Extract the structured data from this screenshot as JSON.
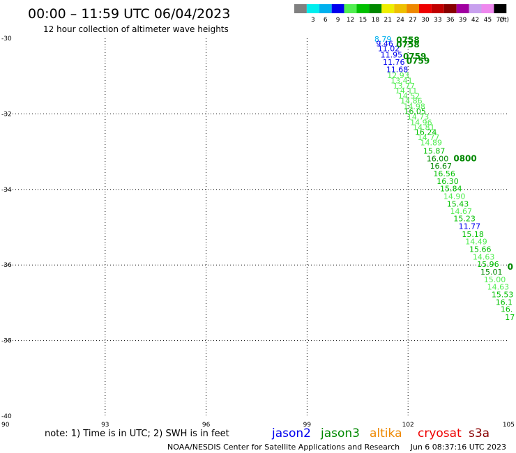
{
  "header": {
    "title": "00:00 – 11:59 UTC 06/04/2023",
    "subtitle": "12 hour collection of altimeter wave heights"
  },
  "color_scale": {
    "unit": "(ft)",
    "bins": [
      {
        "label": "",
        "color": "#808080"
      },
      {
        "label": "3",
        "color": "#00eeee"
      },
      {
        "label": "6",
        "color": "#00b0ee"
      },
      {
        "label": "9",
        "color": "#0000ee"
      },
      {
        "label": "12",
        "color": "#50ee50"
      },
      {
        "label": "15",
        "color": "#00c000"
      },
      {
        "label": "18",
        "color": "#008800"
      },
      {
        "label": "21",
        "color": "#eeee00"
      },
      {
        "label": "24",
        "color": "#eec000"
      },
      {
        "label": "27",
        "color": "#ee8800"
      },
      {
        "label": "30",
        "color": "#ee0000"
      },
      {
        "label": "33",
        "color": "#c00000"
      },
      {
        "label": "36",
        "color": "#880000"
      },
      {
        "label": "39",
        "color": "#a000a0"
      },
      {
        "label": "42",
        "color": "#c8a0ee"
      },
      {
        "label": "45",
        "color": "#ee88ee"
      },
      {
        "label": "70",
        "color": "#000000"
      }
    ]
  },
  "map": {
    "lon_range": [
      90,
      105
    ],
    "lat_range": [
      -40,
      -30
    ],
    "lon_ticks": [
      {
        "value": 90,
        "label": "90"
      },
      {
        "value": 93,
        "label": "93"
      },
      {
        "value": 96,
        "label": "96"
      },
      {
        "value": 99,
        "label": "99"
      },
      {
        "value": 102,
        "label": "102"
      },
      {
        "value": 105,
        "label": "105"
      }
    ],
    "lat_ticks": [
      {
        "value": -30,
        "label": "-30"
      },
      {
        "value": -32,
        "label": "-32"
      },
      {
        "value": -34,
        "label": "-34"
      },
      {
        "value": -36,
        "label": "-36"
      },
      {
        "value": -38,
        "label": "-38"
      },
      {
        "value": -40,
        "label": "-40"
      }
    ],
    "grid": "dotted",
    "observations": [
      {
        "lon": 101.0,
        "lat": -30.02,
        "text": "8.79",
        "color": "#00b0ee"
      },
      {
        "lon": 101.05,
        "lat": -30.14,
        "text": "9.46",
        "color": "#0000ee"
      },
      {
        "lon": 101.1,
        "lat": -30.27,
        "text": "11.02",
        "color": "#0000ee"
      },
      {
        "lon": 101.18,
        "lat": -30.43,
        "text": "11.95",
        "color": "#0000ee"
      },
      {
        "lon": 101.25,
        "lat": -30.63,
        "text": "11.76",
        "color": "#0000ee"
      },
      {
        "lon": 101.35,
        "lat": -30.82,
        "text": "11.68",
        "color": "#0000ee"
      },
      {
        "lon": 101.38,
        "lat": -30.98,
        "text": "12.93",
        "color": "#50ee50"
      },
      {
        "lon": 101.48,
        "lat": -31.12,
        "text": "13.41",
        "color": "#50ee50"
      },
      {
        "lon": 101.55,
        "lat": -31.25,
        "text": "13.77",
        "color": "#50ee50"
      },
      {
        "lon": 101.62,
        "lat": -31.38,
        "text": "14.11",
        "color": "#50ee50"
      },
      {
        "lon": 101.7,
        "lat": -31.52,
        "text": "14.52",
        "color": "#50ee50"
      },
      {
        "lon": 101.77,
        "lat": -31.65,
        "text": "14.86",
        "color": "#50ee50"
      },
      {
        "lon": 101.86,
        "lat": -31.8,
        "text": "14.98",
        "color": "#50ee50"
      },
      {
        "lon": 101.88,
        "lat": -31.93,
        "text": "16.05",
        "color": "#00c000"
      },
      {
        "lon": 101.97,
        "lat": -32.08,
        "text": "14.73",
        "color": "#50ee50"
      },
      {
        "lon": 102.06,
        "lat": -32.22,
        "text": "14.96",
        "color": "#50ee50"
      },
      {
        "lon": 102.14,
        "lat": -32.35,
        "text": "14.81",
        "color": "#50ee50"
      },
      {
        "lon": 102.2,
        "lat": -32.48,
        "text": "16.24",
        "color": "#00c000"
      },
      {
        "lon": 102.28,
        "lat": -32.62,
        "text": "14.77",
        "color": "#50ee50"
      },
      {
        "lon": 102.36,
        "lat": -32.76,
        "text": "14.89",
        "color": "#50ee50"
      },
      {
        "lon": 102.45,
        "lat": -32.98,
        "text": "15.87",
        "color": "#00c000"
      },
      {
        "lon": 102.55,
        "lat": -33.18,
        "text": "16.00",
        "color": "#008800"
      },
      {
        "lon": 102.65,
        "lat": -33.38,
        "text": "16.67",
        "color": "#008800"
      },
      {
        "lon": 102.75,
        "lat": -33.58,
        "text": "16.56",
        "color": "#00c000"
      },
      {
        "lon": 102.85,
        "lat": -33.78,
        "text": "16.30",
        "color": "#00c000"
      },
      {
        "lon": 102.95,
        "lat": -33.98,
        "text": "15.84",
        "color": "#00c000"
      },
      {
        "lon": 103.05,
        "lat": -34.18,
        "text": "14.90",
        "color": "#50ee50"
      },
      {
        "lon": 103.15,
        "lat": -34.38,
        "text": "15.43",
        "color": "#00c000"
      },
      {
        "lon": 103.25,
        "lat": -34.58,
        "text": "14.67",
        "color": "#50ee50"
      },
      {
        "lon": 103.35,
        "lat": -34.77,
        "text": "15.23",
        "color": "#00c000"
      },
      {
        "lon": 103.5,
        "lat": -34.97,
        "text": "11.77",
        "color": "#0000ee"
      },
      {
        "lon": 103.6,
        "lat": -35.18,
        "text": "15.18",
        "color": "#00c000"
      },
      {
        "lon": 103.7,
        "lat": -35.38,
        "text": "14.49",
        "color": "#50ee50"
      },
      {
        "lon": 103.82,
        "lat": -35.58,
        "text": "15.66",
        "color": "#00c000"
      },
      {
        "lon": 103.92,
        "lat": -35.78,
        "text": "14.63",
        "color": "#50ee50"
      },
      {
        "lon": 104.05,
        "lat": -35.98,
        "text": "15.96",
        "color": "#00c000"
      },
      {
        "lon": 104.15,
        "lat": -36.18,
        "text": "15.01",
        "color": "#008800"
      },
      {
        "lon": 104.25,
        "lat": -36.38,
        "text": "15.00",
        "color": "#50ee50"
      },
      {
        "lon": 104.35,
        "lat": -36.58,
        "text": "14.63",
        "color": "#50ee50"
      },
      {
        "lon": 104.48,
        "lat": -36.78,
        "text": "15.53",
        "color": "#00c000"
      },
      {
        "lon": 104.6,
        "lat": -36.98,
        "text": "16.1",
        "color": "#00c000"
      },
      {
        "lon": 104.75,
        "lat": -37.17,
        "text": "16.",
        "color": "#00c000"
      },
      {
        "lon": 104.88,
        "lat": -37.38,
        "text": "17",
        "color": "#00c000"
      }
    ],
    "time_labels": [
      {
        "lon": 101.65,
        "lat": -30.05,
        "text": "0758",
        "color": "#008800"
      },
      {
        "lon": 101.65,
        "lat": -30.17,
        "text": "0758",
        "color": "#008800"
      },
      {
        "lon": 101.85,
        "lat": -30.48,
        "text": "0759",
        "color": "#008800"
      },
      {
        "lon": 101.95,
        "lat": -30.6,
        "text": "0759",
        "color": "#008800"
      },
      {
        "lon": 103.35,
        "lat": -33.18,
        "text": "0800",
        "color": "#008800"
      },
      {
        "lon": 104.95,
        "lat": -36.05,
        "text": "0",
        "color": "#008800"
      }
    ]
  },
  "footer": {
    "note": "note: 1) Time is in UTC; 2) SWH is in feet",
    "satellites": [
      {
        "name": "jason2",
        "color": "#0000ee"
      },
      {
        "name": "jason3",
        "color": "#008800"
      },
      {
        "name": "altika",
        "color": "#ee8800"
      },
      {
        "name": "cryosat",
        "color": "#ee0000"
      },
      {
        "name": "s3a",
        "color": "#880000"
      }
    ],
    "credit": "NOAA/NESDIS Center for Satellite Applications and Research",
    "timestamp": "Jun  6 08:37:16 UTC 2023"
  }
}
